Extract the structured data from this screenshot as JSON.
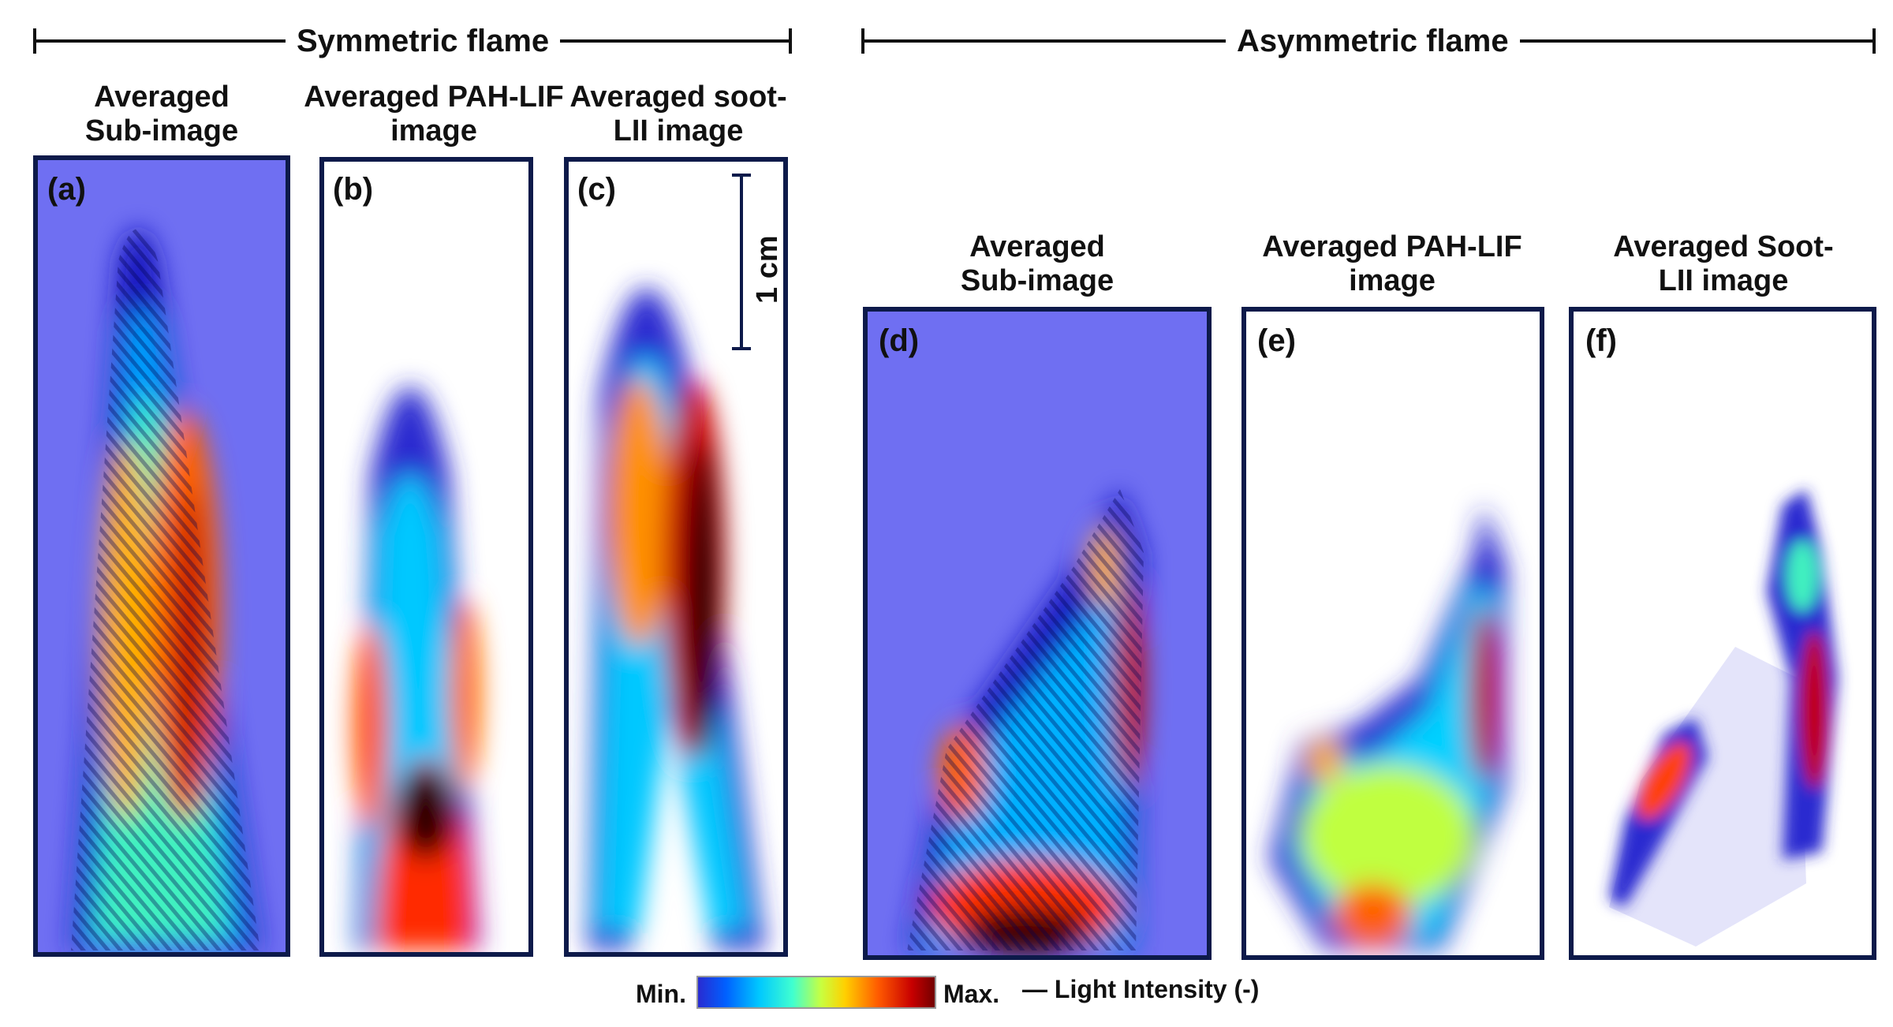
{
  "groups": {
    "symmetric": "Symmetric flame",
    "asymmetric": "Asymmetric flame"
  },
  "panels": [
    {
      "letter": "(a)",
      "title_line1": "Averaged",
      "title_line2": "Sub-image"
    },
    {
      "letter": "(b)",
      "title_line1": "Averaged PAH-LIF",
      "title_line2": "image"
    },
    {
      "letter": "(c)",
      "title_line1": "Averaged soot-",
      "title_line2": "LII image"
    },
    {
      "letter": "(d)",
      "title_line1": "Averaged",
      "title_line2": "Sub-image"
    },
    {
      "letter": "(e)",
      "title_line1": "Averaged PAH-LIF",
      "title_line2": "image"
    },
    {
      "letter": "(f)",
      "title_line1": "Averaged Soot-",
      "title_line2": "LII image"
    }
  ],
  "scale_bar": "1 cm",
  "colorbar": {
    "min_label": "Min.",
    "max_label": "Max.",
    "title": "— Light Intensity (-)",
    "colormap": [
      "#2a2ad0",
      "#0060ff",
      "#00c8ff",
      "#40ffd0",
      "#c8ff40",
      "#ffd000",
      "#ff5a00",
      "#c80000",
      "#700000"
    ]
  },
  "colors": {
    "panel_border": "#0d1a4a",
    "background_blue": "#6f6ff2"
  }
}
